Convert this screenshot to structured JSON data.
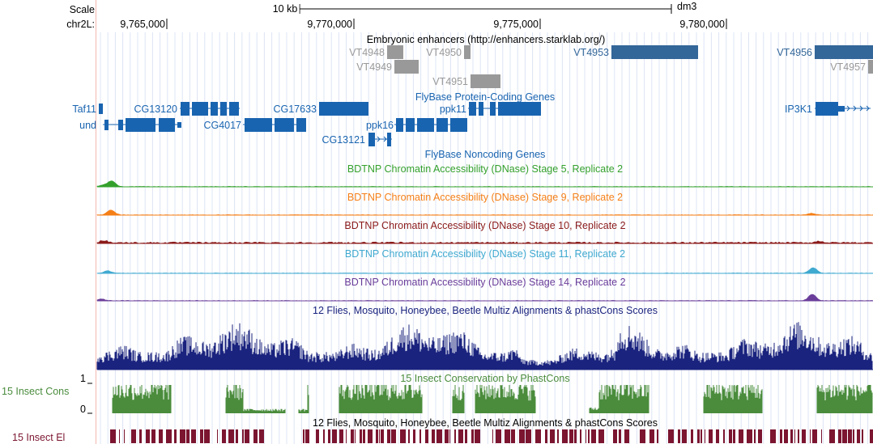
{
  "ruler": {
    "scale_label": "Scale",
    "chrom_label": "chr2L:",
    "scale_bar_label": "10 kb",
    "assembly": "dm3",
    "positions": [
      "9,765,000",
      "9,770,000",
      "9,775,000",
      "9,780,000"
    ]
  },
  "tracks": {
    "enhancers": {
      "title": "Embryonic enhancers (http://enhancers.starklab.org/)",
      "items": [
        "VT4948",
        "VT4949",
        "VT4950",
        "VT4951",
        "VT4953",
        "VT4956",
        "VT4957"
      ]
    },
    "genes": {
      "title": "FlyBase Protein-Coding Genes",
      "items": [
        "Taf11",
        "und",
        "CG13120",
        "CG4017",
        "CG17633",
        "CG13121",
        "ppk16",
        "ppk11",
        "IP3K1"
      ]
    },
    "noncoding": {
      "title": "FlyBase Noncoding Genes"
    },
    "dnase": [
      {
        "title": "BDTNP Chromatin Accessibility (DNase) Stage 5, Replicate 2",
        "color": "#33a02c"
      },
      {
        "title": "BDTNP Chromatin Accessibility (DNase) Stage 9, Replicate 2",
        "color": "#f57f17"
      },
      {
        "title": "BDTNP Chromatin Accessibility (DNase) Stage 10, Replicate 2",
        "color": "#8b1a1a"
      },
      {
        "title": "BDTNP Chromatin Accessibility (DNase) Stage 11, Replicate 2",
        "color": "#3fa9d0"
      },
      {
        "title": "BDTNP Chromatin Accessibility (DNase) Stage 14, Replicate 2",
        "color": "#6a3d9a"
      }
    ],
    "multiz": {
      "title": "12 Flies, Mosquito, Honeybee, Beetle Multiz Alignments & phastCons Scores",
      "color": "#1a237e"
    },
    "phastcons": {
      "side_label": "15 Insect Cons",
      "title": "15 Insect Conservation by PhastCons",
      "y_max": "1",
      "y_min": "0",
      "color": "#4a8c3c"
    },
    "elements": {
      "side_label": "15 Insect El",
      "title": "12 Flies, Mosquito, Honeybee, Beetle Multiz Alignments & phastCons Scores",
      "color": "#7b1530"
    }
  }
}
